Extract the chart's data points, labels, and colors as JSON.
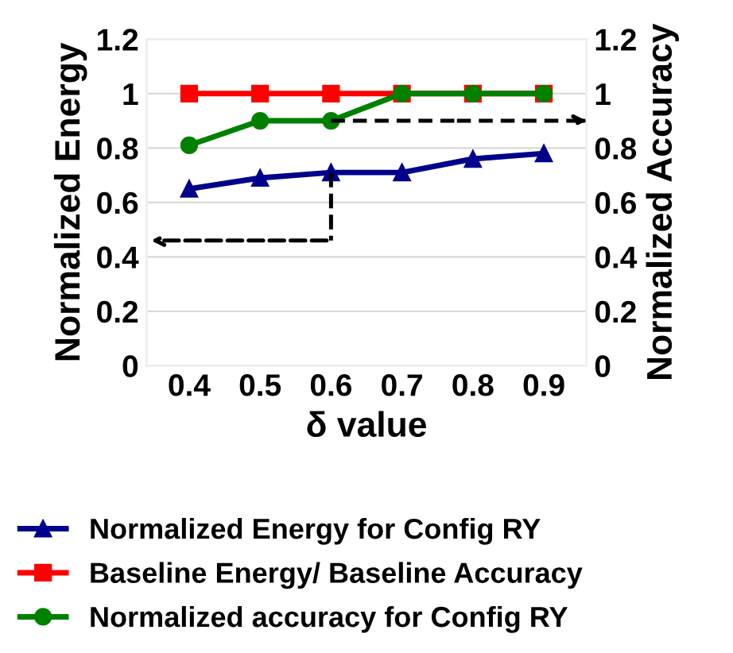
{
  "chart_data": {
    "type": "line",
    "xlabel": "δ value",
    "ylabel": "Normalized Energy",
    "y2label": "Normalized Accuracy",
    "categories": [
      "0.4",
      "0.5",
      "0.6",
      "0.7",
      "0.8",
      "0.9"
    ],
    "series": [
      {
        "name": "Normalized Energy for Config RY",
        "color": "#00008b",
        "marker": "triangle",
        "values": [
          0.65,
          0.69,
          0.71,
          0.71,
          0.76,
          0.78
        ]
      },
      {
        "name": "Baseline Energy/ Baseline Accuracy",
        "color": "#ff0000",
        "marker": "square",
        "values": [
          1,
          1,
          1,
          1,
          1,
          1
        ]
      },
      {
        "name": "Normalized accuracy for Config RY",
        "color": "#008000",
        "marker": "circle",
        "values": [
          0.81,
          0.9,
          0.9,
          1,
          1,
          1
        ]
      }
    ],
    "ylim": [
      0,
      1.2
    ],
    "yticks": [
      0,
      0.2,
      0.4,
      0.6,
      0.8,
      1,
      1.2
    ],
    "y2lim": [
      0,
      1.2
    ],
    "y2ticks": [
      0,
      0.2,
      0.4,
      0.6,
      0.8,
      1,
      1.2
    ],
    "grid": "y",
    "legend": "bottom",
    "line_style": "solid"
  }
}
